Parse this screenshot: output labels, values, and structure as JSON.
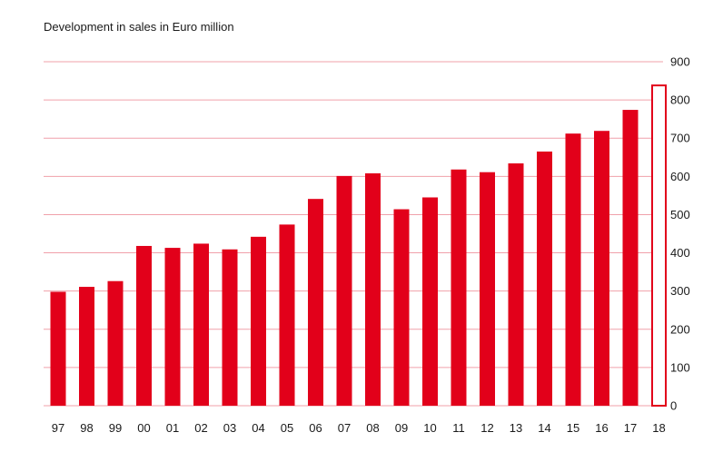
{
  "chart_data": {
    "type": "bar",
    "title": "Development in sales in Euro million",
    "xlabel": "",
    "ylabel": "",
    "categories": [
      "97",
      "98",
      "99",
      "00",
      "01",
      "02",
      "03",
      "04",
      "05",
      "06",
      "07",
      "08",
      "09",
      "10",
      "11",
      "12",
      "13",
      "14",
      "15",
      "16",
      "17",
      "18"
    ],
    "values": [
      298,
      311,
      326,
      418,
      413,
      424,
      409,
      442,
      474,
      541,
      601,
      608,
      514,
      545,
      618,
      611,
      634,
      665,
      712,
      719,
      774,
      838
    ],
    "outlined_categories": [
      "18"
    ],
    "ylim": [
      0,
      900
    ],
    "yticks": [
      0,
      100,
      200,
      300,
      400,
      500,
      600,
      700,
      800,
      900
    ],
    "y_axis_side": "right",
    "grid": true,
    "colors": {
      "bar": "#e2001a",
      "grid": "#f0a0aa",
      "text": "#1a1a1a"
    }
  }
}
